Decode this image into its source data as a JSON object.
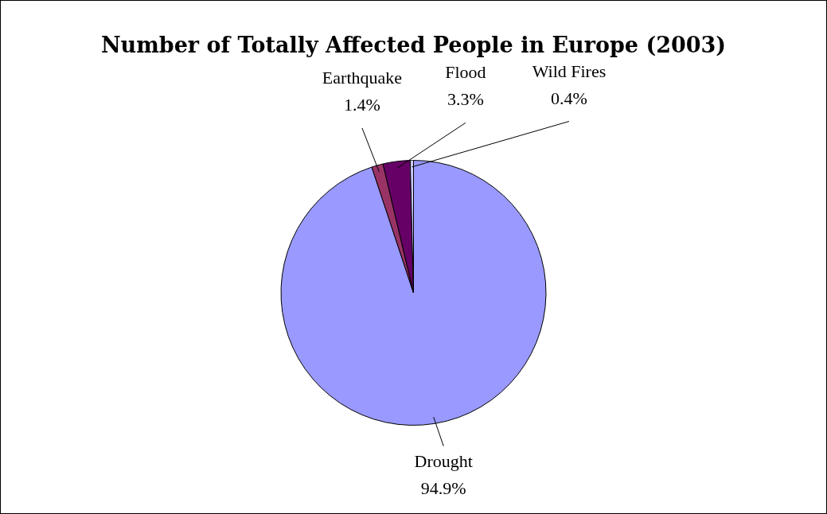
{
  "chart_data": {
    "type": "pie",
    "title": "Number of Totally Affected People in Europe (2003)",
    "categories": [
      "Drought",
      "Earthquake",
      "Flood",
      "Wild Fires"
    ],
    "values": [
      94.9,
      1.4,
      3.3,
      0.4
    ],
    "value_labels": [
      "94.9%",
      "1.4%",
      "3.3%",
      "0.4%"
    ],
    "colors": [
      "#9999ff",
      "#993366",
      "#660066",
      "#ccccff"
    ],
    "legend": false
  }
}
